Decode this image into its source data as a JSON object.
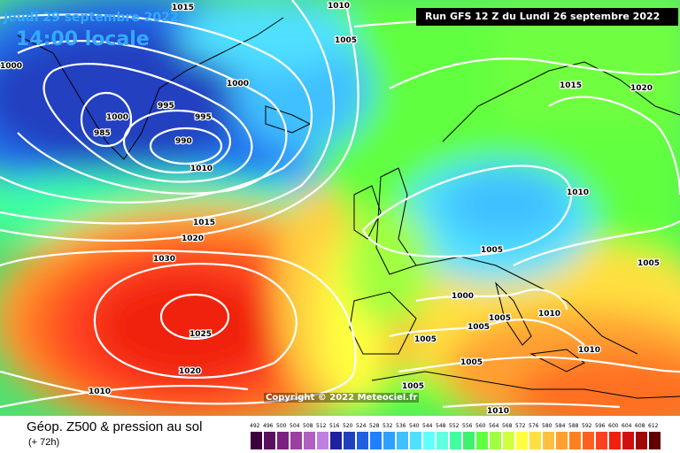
{
  "header": {
    "date": "Jeudi 29 septembre 2022",
    "local_time": "14:00 locale",
    "run_info": "Run GFS 12 Z du Lundi 26 septembre 2022"
  },
  "copyright": "Copyright © 2022 Meteociel.fr",
  "footer": {
    "title": "Géop. Z500 & pression au sol",
    "forecast_offset": "(+ 72h)"
  },
  "isobar_labels": [
    "1015",
    "1010",
    "1000",
    "1005",
    "1000",
    "995",
    "1000",
    "995",
    "985",
    "990",
    "1010",
    "1015",
    "1020",
    "1030",
    "1025",
    "1020",
    "1010",
    "1005",
    "1010",
    "1015",
    "1020",
    "1005",
    "1000",
    "1005",
    "1010",
    "1005",
    "1005",
    "1010",
    "1005",
    "1010",
    "1005"
  ],
  "color_scale": {
    "labels": [
      "492",
      "496",
      "500",
      "504",
      "508",
      "512",
      "516",
      "520",
      "524",
      "528",
      "532",
      "536",
      "540",
      "544",
      "548",
      "552",
      "556",
      "560",
      "564",
      "568",
      "572",
      "576",
      "580",
      "584",
      "588",
      "592",
      "596",
      "600",
      "604",
      "608",
      "612"
    ],
    "colors": [
      "#3d003d",
      "#5a1060",
      "#7a2080",
      "#9a40a0",
      "#b060c0",
      "#c080e0",
      "#2020a0",
      "#2040c0",
      "#2060e0",
      "#2080ff",
      "#30a0ff",
      "#40c0ff",
      "#50e0ff",
      "#60ffff",
      "#60ffe0",
      "#40ffa0",
      "#40f070",
      "#60ff40",
      "#a0ff40",
      "#d0ff40",
      "#ffff40",
      "#ffe040",
      "#ffc040",
      "#ffa030",
      "#ff8020",
      "#ff6020",
      "#ff4020",
      "#f02010",
      "#d01010",
      "#a00808",
      "#600000"
    ]
  }
}
